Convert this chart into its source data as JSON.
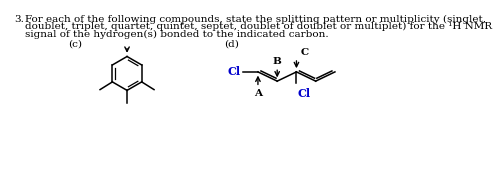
{
  "bg_color": "#ffffff",
  "text_color": "#000000",
  "font_size": 7.5,
  "title_num": "3.",
  "title_line1": "For each of the following compounds, state the splitting pattern or multiplicity (singlet,",
  "title_line2": "doublet, triplet, quartet, quintet, septet, doublet of doublet or multiplet) for the ¹H NMR",
  "title_line3": "signal of the hydrogen(s) bonded to the indicated carbon.",
  "label_c": "(c)",
  "label_d": "(d)",
  "label_A": "A",
  "label_B": "B",
  "label_C": "C",
  "label_Cl_left": "Cl",
  "label_Cl_bottom": "Cl",
  "blue_color": "#0000cc"
}
